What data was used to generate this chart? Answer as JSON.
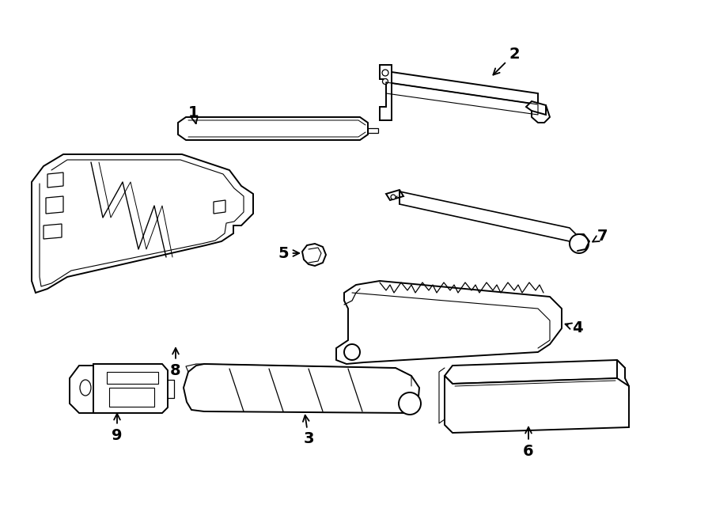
{
  "background_color": "#ffffff",
  "line_color": "#000000",
  "line_width": 1.4,
  "fig_width": 9.0,
  "fig_height": 6.61,
  "dpi": 100
}
